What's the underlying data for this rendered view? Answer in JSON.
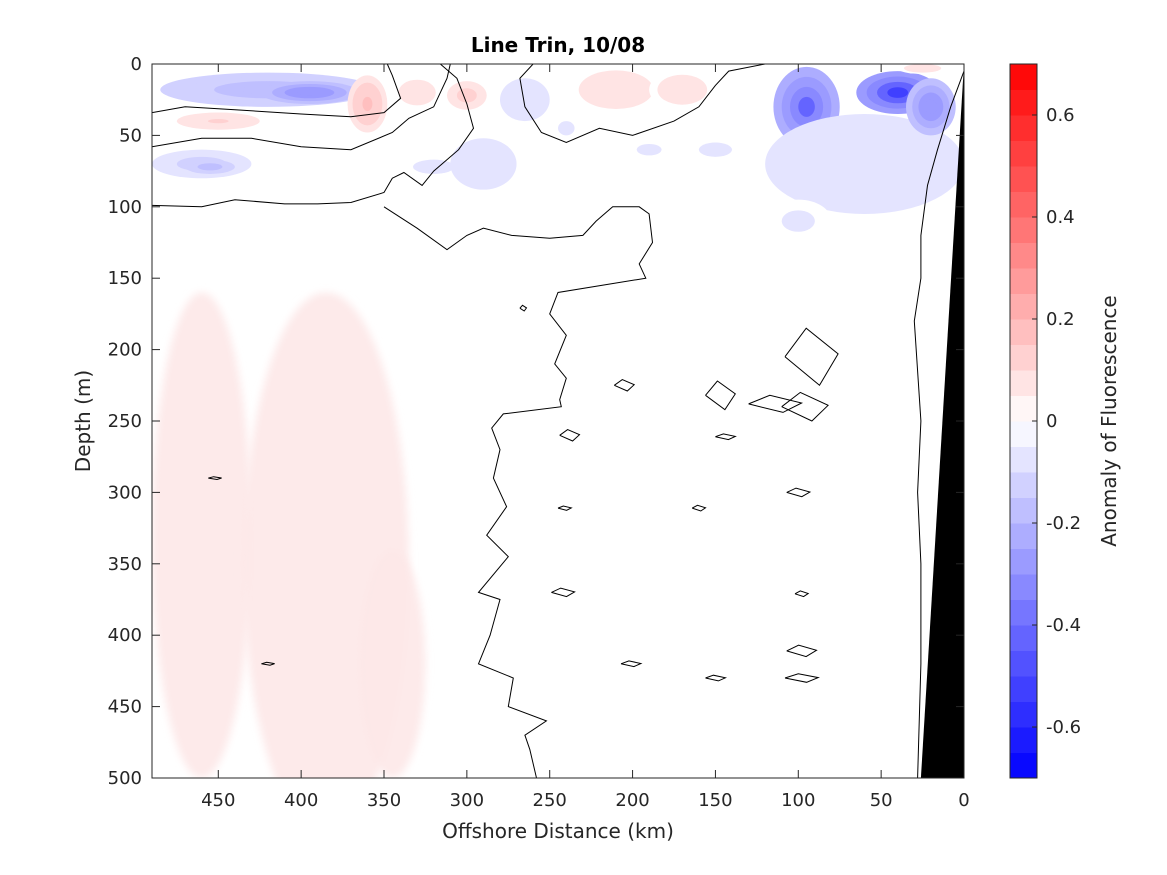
{
  "chart_data": {
    "type": "heatmap",
    "title": "Line Trin, 10/08",
    "xlabel": "Offshore Distance (km)",
    "ylabel": "Depth (m)",
    "xlim": [
      490,
      0
    ],
    "ylim": [
      0,
      500
    ],
    "x_reversed": true,
    "y_reversed": true,
    "x_ticks": [
      450,
      400,
      350,
      300,
      250,
      200,
      150,
      100,
      50,
      0
    ],
    "y_ticks": [
      0,
      50,
      100,
      150,
      200,
      250,
      300,
      350,
      400,
      450,
      500
    ],
    "colorbar": {
      "label": "Anomaly of Fluorescence",
      "range": [
        -0.7,
        0.7
      ],
      "levels": 28,
      "ticks": [
        0.6,
        0.4,
        0.2,
        0,
        -0.2,
        -0.4,
        -0.6
      ],
      "tick_labels": [
        "0.6",
        "0.4",
        "0.2",
        "0",
        "-0.2",
        "-0.4",
        "-0.6"
      ],
      "colormap": "blue-white-red",
      "low_color": "#0000ff",
      "high_color": "#ff0000"
    },
    "anomaly_patches": [
      {
        "x": 420,
        "y": 18,
        "rx": 65,
        "ry": 12,
        "value": -0.2
      },
      {
        "x": 395,
        "y": 20,
        "rx": 30,
        "ry": 8,
        "value": -0.3
      },
      {
        "x": 360,
        "y": 28,
        "rx": 12,
        "ry": 20,
        "value": 0.15
      },
      {
        "x": 450,
        "y": 40,
        "rx": 25,
        "ry": 6,
        "value": 0.1
      },
      {
        "x": 460,
        "y": 70,
        "rx": 30,
        "ry": 10,
        "value": -0.12
      },
      {
        "x": 455,
        "y": 72,
        "rx": 15,
        "ry": 5,
        "value": -0.2
      },
      {
        "x": 320,
        "y": 72,
        "rx": 25,
        "ry": 10,
        "value": -0.06
      },
      {
        "x": 265,
        "y": 25,
        "rx": 15,
        "ry": 15,
        "value": -0.1
      },
      {
        "x": 240,
        "y": 45,
        "rx": 10,
        "ry": 10,
        "value": -0.06
      },
      {
        "x": 210,
        "y": 18,
        "rx": 30,
        "ry": 18,
        "value": 0.08
      },
      {
        "x": 170,
        "y": 18,
        "rx": 20,
        "ry": 14,
        "value": 0.08
      },
      {
        "x": 330,
        "y": 20,
        "rx": 15,
        "ry": 12,
        "value": 0.08
      },
      {
        "x": 300,
        "y": 22,
        "rx": 12,
        "ry": 10,
        "value": 0.12
      },
      {
        "x": 290,
        "y": 70,
        "rx": 20,
        "ry": 18,
        "value": -0.1
      },
      {
        "x": 150,
        "y": 60,
        "rx": 20,
        "ry": 10,
        "value": -0.06
      },
      {
        "x": 190,
        "y": 60,
        "rx": 15,
        "ry": 8,
        "value": -0.06
      },
      {
        "x": 95,
        "y": 30,
        "rx": 20,
        "ry": 28,
        "value": -0.4
      },
      {
        "x": 60,
        "y": 70,
        "rx": 60,
        "ry": 35,
        "value": -0.1
      },
      {
        "x": 40,
        "y": 20,
        "rx": 25,
        "ry": 15,
        "value": -0.5
      },
      {
        "x": 20,
        "y": 30,
        "rx": 15,
        "ry": 20,
        "value": -0.3
      },
      {
        "x": 100,
        "y": 110,
        "rx": 20,
        "ry": 15,
        "value": -0.06
      },
      {
        "x": 25,
        "y": 3,
        "rx": 15,
        "ry": 4,
        "value": 0.08
      }
    ],
    "weak_positive_band": [
      {
        "x": 460,
        "y": 330,
        "rx": 30,
        "ry": 170,
        "value": 0.05
      },
      {
        "x": 385,
        "y": 350,
        "rx": 50,
        "ry": 190,
        "value": 0.05
      },
      {
        "x": 345,
        "y": 420,
        "rx": 20,
        "ry": 80,
        "value": 0.04
      }
    ],
    "zero_contours": [
      [
        [
          490,
          34
        ],
        [
          470,
          30
        ],
        [
          440,
          32
        ],
        [
          400,
          35
        ],
        [
          370,
          37
        ],
        [
          350,
          34
        ],
        [
          340,
          24
        ],
        [
          345,
          8
        ],
        [
          348,
          0
        ]
      ],
      [
        [
          490,
          58
        ],
        [
          460,
          52
        ],
        [
          430,
          52
        ],
        [
          400,
          58
        ],
        [
          370,
          60
        ],
        [
          345,
          48
        ],
        [
          335,
          38
        ],
        [
          320,
          30
        ],
        [
          312,
          10
        ],
        [
          310,
          0
        ]
      ],
      [
        [
          490,
          99
        ],
        [
          460,
          100
        ],
        [
          440,
          95
        ],
        [
          410,
          98
        ],
        [
          390,
          98
        ],
        [
          370,
          97
        ],
        [
          350,
          90
        ],
        [
          345,
          80
        ],
        [
          338,
          76
        ],
        [
          327,
          85
        ],
        [
          320,
          75
        ],
        [
          305,
          60
        ],
        [
          296,
          45
        ],
        [
          300,
          28
        ],
        [
          306,
          10
        ],
        [
          316,
          0
        ]
      ],
      [
        [
          260,
          0
        ],
        [
          268,
          10
        ],
        [
          265,
          30
        ],
        [
          255,
          48
        ],
        [
          240,
          55
        ],
        [
          220,
          45
        ],
        [
          200,
          50
        ],
        [
          175,
          40
        ],
        [
          160,
          30
        ],
        [
          150,
          15
        ],
        [
          142,
          5
        ],
        [
          120,
          0
        ]
      ],
      [
        [
          350,
          100
        ],
        [
          330,
          115
        ],
        [
          312,
          130
        ],
        [
          300,
          120
        ],
        [
          290,
          115
        ],
        [
          273,
          120
        ],
        [
          250,
          122
        ],
        [
          230,
          120
        ],
        [
          222,
          110
        ],
        [
          212,
          100
        ],
        [
          196,
          100
        ],
        [
          190,
          105
        ],
        [
          188,
          125
        ],
        [
          196,
          140
        ],
        [
          192,
          150
        ],
        [
          245,
          160
        ],
        [
          250,
          175
        ],
        [
          240,
          190
        ],
        [
          247,
          210
        ],
        [
          240,
          220
        ],
        [
          244,
          235
        ],
        [
          243,
          240
        ],
        [
          278,
          245
        ],
        [
          285,
          255
        ],
        [
          280,
          270
        ],
        [
          284,
          290
        ],
        [
          276,
          310
        ],
        [
          288,
          330
        ],
        [
          275,
          345
        ],
        [
          293,
          370
        ],
        [
          280,
          375
        ],
        [
          286,
          400
        ],
        [
          293,
          420
        ],
        [
          272,
          430
        ],
        [
          275,
          450
        ],
        [
          252,
          460
        ],
        [
          265,
          470
        ],
        [
          262,
          480
        ],
        [
          258,
          500
        ]
      ],
      [
        [
          0,
          5
        ],
        [
          8,
          30
        ],
        [
          16,
          60
        ],
        [
          22,
          85
        ],
        [
          26,
          120
        ],
        [
          26,
          150
        ],
        [
          30,
          180
        ],
        [
          26,
          250
        ],
        [
          28,
          300
        ],
        [
          26,
          350
        ],
        [
          26,
          420
        ],
        [
          28,
          500
        ]
      ]
    ],
    "small_contours": [
      {
        "x": 238,
        "y": 260,
        "rx": 6,
        "ry": 4
      },
      {
        "x": 114,
        "y": 238,
        "rx": 16,
        "ry": 6
      },
      {
        "x": 92,
        "y": 205,
        "rx": 16,
        "ry": 20
      },
      {
        "x": 96,
        "y": 240,
        "rx": 14,
        "ry": 10
      },
      {
        "x": 147,
        "y": 232,
        "rx": 9,
        "ry": 10
      },
      {
        "x": 144,
        "y": 261,
        "rx": 6,
        "ry": 2
      },
      {
        "x": 205,
        "y": 225,
        "rx": 6,
        "ry": 4
      },
      {
        "x": 241,
        "y": 311,
        "rx": 4,
        "ry": 1.5
      },
      {
        "x": 160,
        "y": 311,
        "rx": 4,
        "ry": 2
      },
      {
        "x": 100,
        "y": 300,
        "rx": 7,
        "ry": 3
      },
      {
        "x": 242,
        "y": 370,
        "rx": 7,
        "ry": 3
      },
      {
        "x": 98,
        "y": 371,
        "rx": 4,
        "ry": 2
      },
      {
        "x": 98,
        "y": 411,
        "rx": 9,
        "ry": 4
      },
      {
        "x": 98,
        "y": 430,
        "rx": 10,
        "ry": 3
      },
      {
        "x": 201,
        "y": 420,
        "rx": 6,
        "ry": 2
      },
      {
        "x": 150,
        "y": 430,
        "rx": 6,
        "ry": 2
      },
      {
        "x": 452,
        "y": 290,
        "rx": 4,
        "ry": 1
      },
      {
        "x": 420,
        "y": 420,
        "rx": 4,
        "ry": 1
      },
      {
        "x": 266,
        "y": 171,
        "rx": 2,
        "ry": 2
      }
    ],
    "bottom_mask": {
      "color": "#000000",
      "polygon": [
        [
          0,
          0
        ],
        [
          26,
          500
        ],
        [
          0,
          500
        ],
        [
          0,
          0
        ]
      ]
    }
  }
}
